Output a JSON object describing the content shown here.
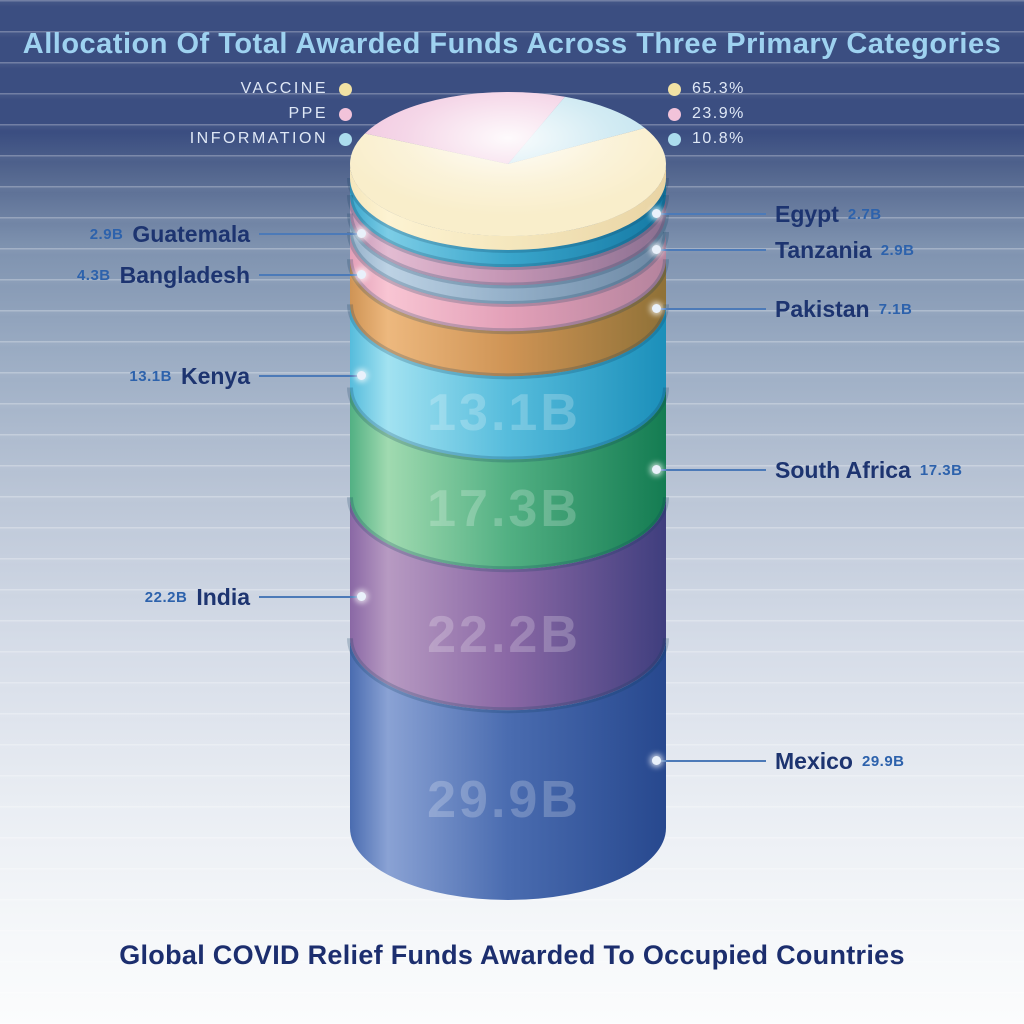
{
  "header": {
    "title": "Allocation Of Total Awarded Funds Across Three Primary Categories"
  },
  "footer": {
    "title": "Global COVID Relief Funds Awarded To Occupied Countries"
  },
  "chart_data": {
    "type": "pie+stacked-cylinder",
    "title": "Allocation Of Total Awarded Funds Across Three Primary Categories",
    "subtitle": "Global COVID Relief Funds Awarded To Occupied Countries",
    "unit": "billions",
    "pie": {
      "legend_position": "top",
      "categories": [
        {
          "label": "VACCINE",
          "pct": 65.3,
          "pct_label": "65.3%",
          "color": "#f9eecb",
          "dot_color": "#f2e2a4"
        },
        {
          "label": "PPE",
          "pct": 23.9,
          "pct_label": "23.9%",
          "color": "#f1c7df",
          "dot_color": "#f2c3da"
        },
        {
          "label": "INFORMATION",
          "pct": 10.8,
          "pct_label": "10.8%",
          "color": "#c2e4ef",
          "dot_color": "#abdced"
        }
      ]
    },
    "countries": [
      {
        "name": "Egypt",
        "value": 2.7,
        "value_label": "2.7B",
        "side": "right",
        "show_on_band": false,
        "colors": {
          "light": "#7ccde6",
          "mid": "#3aa6cc",
          "dark": "#1479a4"
        }
      },
      {
        "name": "Guatemala",
        "value": 2.9,
        "value_label": "2.9B",
        "side": "left",
        "show_on_band": false,
        "colors": {
          "light": "#e3bcd2",
          "mid": "#c495b4",
          "dark": "#8a6f90"
        }
      },
      {
        "name": "Tanzania",
        "value": 2.9,
        "value_label": "2.9B",
        "side": "right",
        "show_on_band": false,
        "colors": {
          "light": "#bdd2e4",
          "mid": "#94b0c9",
          "dark": "#6c87a3"
        }
      },
      {
        "name": "Bangladesh",
        "value": 4.3,
        "value_label": "4.3B",
        "side": "left",
        "show_on_band": false,
        "colors": {
          "light": "#f8c5d3",
          "mid": "#e3a0b8",
          "dark": "#b4839d"
        }
      },
      {
        "name": "Pakistan",
        "value": 7.1,
        "value_label": "7.1B",
        "side": "right",
        "show_on_band": false,
        "colors": {
          "light": "#edb87e",
          "mid": "#cf9455",
          "dark": "#8f7137"
        }
      },
      {
        "name": "Kenya",
        "value": 13.1,
        "value_label": "13.1B",
        "side": "left",
        "show_on_band": true,
        "colors": {
          "light": "#a2e2f1",
          "mid": "#56bcdc",
          "dark": "#1b8fba"
        }
      },
      {
        "name": "South Africa",
        "value": 17.3,
        "value_label": "17.3B",
        "side": "right",
        "show_on_band": true,
        "colors": {
          "light": "#a0dab0",
          "mid": "#52b083",
          "dark": "#147c52"
        }
      },
      {
        "name": "India",
        "value": 22.2,
        "value_label": "22.2B",
        "side": "left",
        "show_on_band": true,
        "colors": {
          "light": "#b79ac2",
          "mid": "#8a68a5",
          "dark": "#3f3e7e"
        }
      },
      {
        "name": "Mexico",
        "value": 29.9,
        "value_label": "29.9B",
        "side": "right",
        "show_on_band": true,
        "colors": {
          "light": "#8aa2d4",
          "mid": "#4a6cb0",
          "dark": "#27488e"
        }
      }
    ],
    "disc_color": {
      "light": "#fdf3d2",
      "mid": "#f5e7bd",
      "dark": "#e9d4a4"
    },
    "accent_colors": {
      "label_value": "#2d62ac",
      "label_name": "#1d3470",
      "leader_line": "#4c7ab8",
      "title_top": "#9ed2f0",
      "title_bottom": "#1c2e6e"
    }
  }
}
